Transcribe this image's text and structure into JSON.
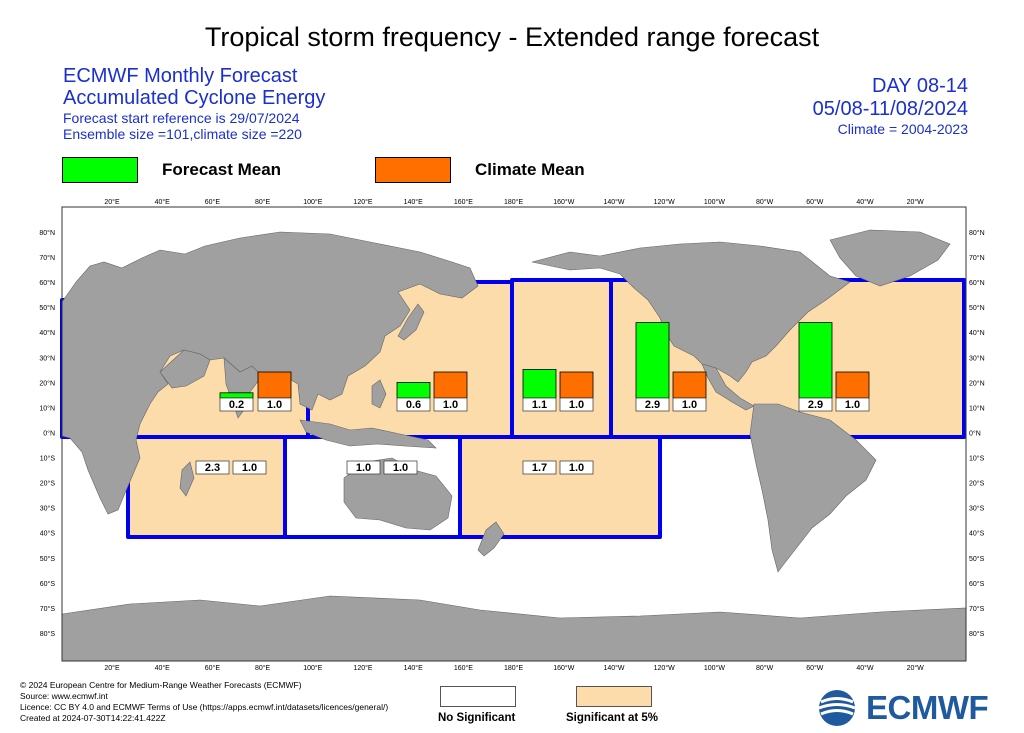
{
  "title": "Tropical storm frequency - Extended range forecast",
  "header": {
    "line1": "ECMWF Monthly Forecast",
    "line2": "Accumulated Cyclone Energy",
    "line3": "Forecast start reference is 29/07/2024",
    "line4": "Ensemble size =101,climate size =220",
    "day": "DAY 08-14",
    "dates": "05/08-11/08/2024",
    "climate": "Climate = 2004-2023"
  },
  "legend": {
    "forecast_label": "Forecast Mean",
    "climate_label": "Climate Mean",
    "forecast_color": "#00ff00",
    "climate_color": "#ff6f00"
  },
  "significance": {
    "none_label": "No Significant",
    "sig_label": "Significant at 5%",
    "none_color": "#ffffff",
    "sig_color": "#fddcab"
  },
  "colors": {
    "land": "#a0a0a0",
    "ocean": "#ffffff",
    "border": "#0000ee"
  },
  "chart_data": {
    "type": "bar",
    "x_ticks": [
      "20°E",
      "40°E",
      "60°E",
      "80°E",
      "100°E",
      "120°E",
      "140°E",
      "160°E",
      "180°E",
      "160°W",
      "140°W",
      "120°W",
      "100°W",
      "80°W",
      "60°W",
      "40°W",
      "20°W"
    ],
    "y_ticks": [
      "80°N",
      "70°N",
      "60°N",
      "50°N",
      "40°N",
      "30°N",
      "20°N",
      "10°N",
      "0°N",
      "10°S",
      "20°S",
      "30°S",
      "40°S",
      "50°S",
      "60°S",
      "70°S",
      "80°S"
    ],
    "basins": [
      {
        "forecast": 0.2,
        "forecast_label": "0.2",
        "climate": 1.0,
        "climate_label": "1.0",
        "significant": true
      },
      {
        "forecast": 0.6,
        "forecast_label": "0.6",
        "climate": 1.0,
        "climate_label": "1.0",
        "significant": true
      },
      {
        "forecast": 1.1,
        "forecast_label": "1.1",
        "climate": 1.0,
        "climate_label": "1.0",
        "significant": true
      },
      {
        "forecast": 2.9,
        "forecast_label": "2.9",
        "climate": 1.0,
        "climate_label": "1.0",
        "significant": true
      },
      {
        "forecast": 2.9,
        "forecast_label": "2.9",
        "climate": 1.0,
        "climate_label": "1.0",
        "significant": true
      },
      {
        "forecast": 2.3,
        "forecast_label": "2.3",
        "climate": 1.0,
        "climate_label": "1.0",
        "significant": true
      },
      {
        "forecast": 1.0,
        "forecast_label": "1.0",
        "climate": 1.0,
        "climate_label": "1.0",
        "significant": false
      },
      {
        "forecast": 1.7,
        "forecast_label": "1.7",
        "climate": 1.0,
        "climate_label": "1.0",
        "significant": true
      }
    ]
  },
  "footer": {
    "line1": "© 2024 European Centre for Medium-Range Weather Forecasts (ECMWF)",
    "line2": "Source: www.ecmwf.int",
    "line3": "Licence: CC BY 4.0 and ECMWF Terms of Use (https://apps.ecmwf.int/datasets/licences/general/)",
    "line4": "Created at 2024-07-30T14:22:41.422Z"
  },
  "logo_text": "ECMWF"
}
